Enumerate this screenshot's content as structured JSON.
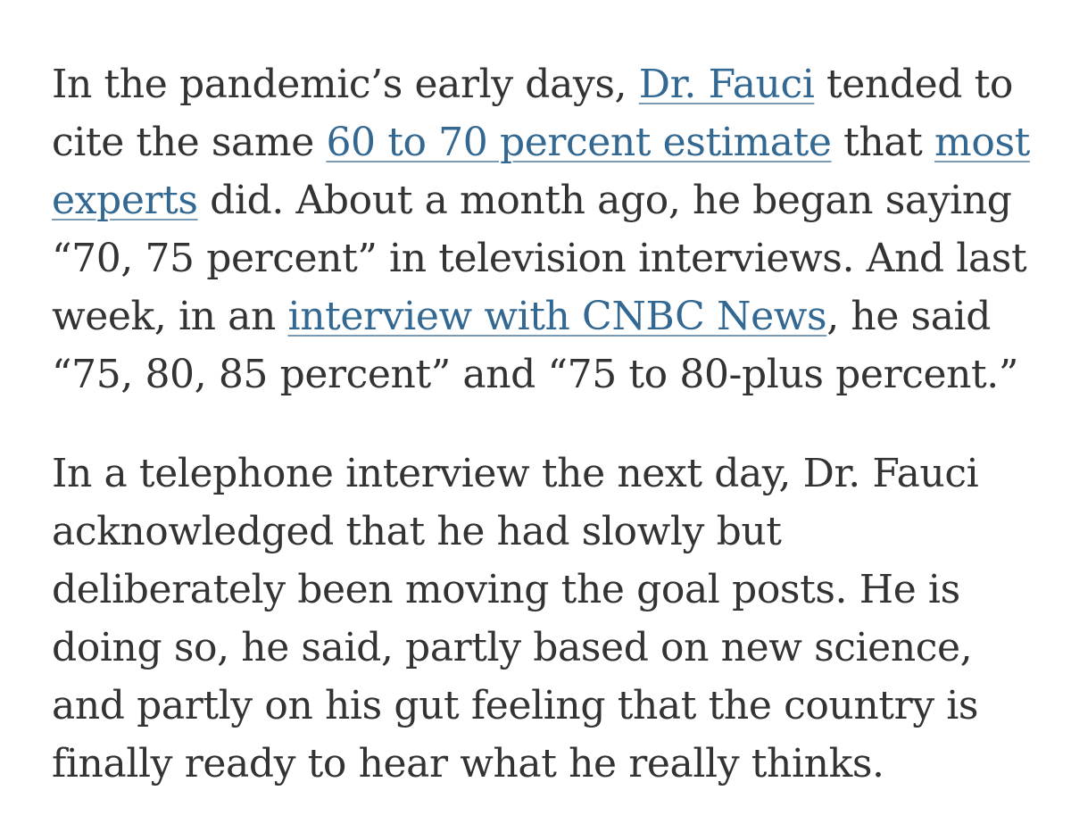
{
  "article": {
    "paragraph_1": {
      "line_1": {
        "before": "In the pandemic’s early days, ",
        "link": "Dr. Fauci",
        "after": " tended to"
      },
      "line_2": {
        "before": "cite the same ",
        "link_1": "60 to 70 percent estimate",
        "middle": " that ",
        "link_2": "most"
      },
      "line_3": {
        "link": "experts",
        "after": " did. About a month ago, he began saying"
      },
      "line_4": {
        "text": "“70, 75 percent” in television interviews. And last"
      },
      "line_5": {
        "before": "week, in an ",
        "link": "interview with CNBC News",
        "after": ", he said"
      },
      "line_6": {
        "text": "“75, 80, 85 percent” and “75 to 80-plus percent.”"
      }
    },
    "paragraph_2": {
      "lines": [
        "In a telephone interview the next day, Dr. Fauci",
        "acknowledged that he had slowly but",
        "deliberately been moving the goal posts. He is",
        "doing so, he said, partly based on new science,",
        "and partly on his gut feeling that the country is",
        "finally ready to hear what he really thinks."
      ]
    },
    "link_color": "#326891",
    "text_color": "#333333"
  }
}
